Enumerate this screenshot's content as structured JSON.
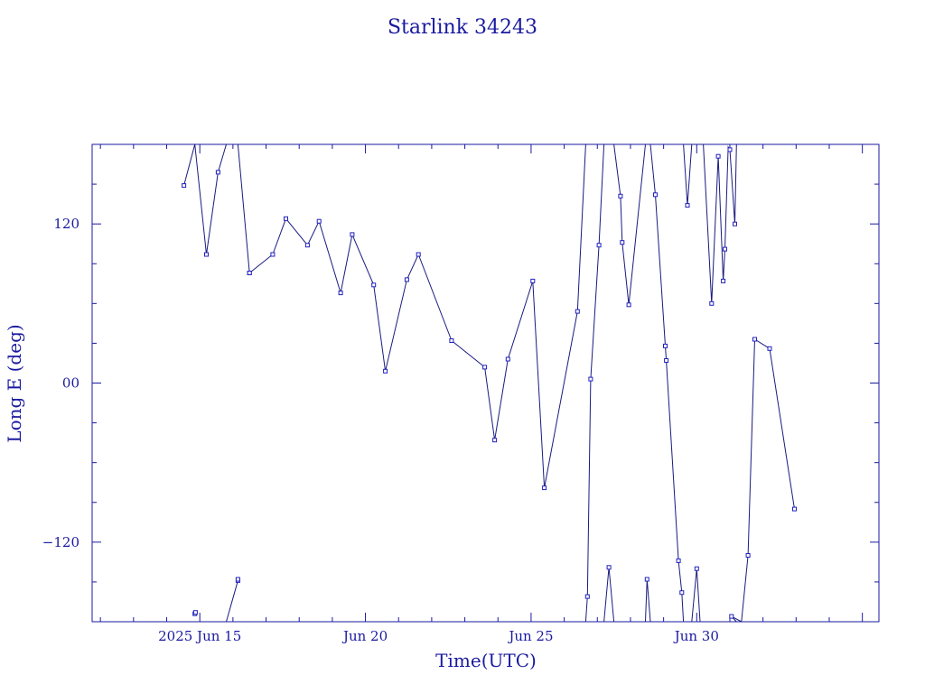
{
  "chart_data": {
    "type": "line",
    "title": "Starlink 34243",
    "xlabel": "Time(UTC)",
    "ylabel": "Long E (deg)",
    "x_unit": "day of June 2025",
    "xlim": [
      11.75,
      35.5
    ],
    "ylim": [
      -180,
      180
    ],
    "x_ticks": [
      {
        "x": 15,
        "label": "2025 Jun 15"
      },
      {
        "x": 20,
        "label": "Jun 20"
      },
      {
        "x": 25,
        "label": "Jun 25"
      },
      {
        "x": 30,
        "label": "Jun 30"
      }
    ],
    "y_ticks": [
      {
        "y": 120,
        "label": "120"
      },
      {
        "y": 0,
        "label": "00"
      },
      {
        "y": -120,
        "label": "−120"
      }
    ],
    "grid": false,
    "segments": [
      [
        [
          14.52,
          149
        ],
        [
          14.85,
          186
        ]
      ],
      [
        [
          14.85,
          -174
        ],
        [
          14.87,
          -173
        ]
      ],
      [
        [
          14.85,
          186
        ],
        [
          15.2,
          97
        ]
      ],
      [
        [
          15.2,
          97
        ],
        [
          15.55,
          159
        ],
        [
          15.8,
          188
        ]
      ],
      [
        [
          15.8,
          -188
        ],
        [
          16.15,
          -149
        ],
        [
          16.15,
          -148
        ]
      ],
      [
        [
          16.15,
          188
        ],
        [
          16.5,
          83
        ]
      ],
      [
        [
          16.5,
          83
        ],
        [
          17.2,
          97
        ],
        [
          17.6,
          124
        ],
        [
          18.25,
          104
        ],
        [
          18.6,
          122
        ],
        [
          19.25,
          68
        ],
        [
          19.6,
          112
        ],
        [
          20.25,
          74
        ],
        [
          20.6,
          9
        ],
        [
          21.25,
          78
        ],
        [
          21.6,
          97
        ],
        [
          22.6,
          32
        ],
        [
          23.6,
          12
        ],
        [
          23.9,
          -43
        ],
        [
          24.3,
          18
        ],
        [
          25.05,
          77
        ],
        [
          25.4,
          -79
        ],
        [
          26.4,
          54
        ],
        [
          26.65,
          180
        ]
      ],
      [
        [
          26.65,
          -180
        ],
        [
          26.7,
          -161
        ],
        [
          26.8,
          3
        ],
        [
          27.05,
          104
        ],
        [
          27.2,
          180
        ]
      ],
      [
        [
          27.2,
          -180
        ],
        [
          27.35,
          -139
        ],
        [
          27.5,
          -180
        ]
      ],
      [
        [
          27.5,
          180
        ],
        [
          27.7,
          141
        ],
        [
          27.75,
          106
        ],
        [
          27.95,
          59
        ],
        [
          28.45,
          180
        ]
      ],
      [
        [
          28.45,
          -180
        ],
        [
          28.5,
          -148
        ],
        [
          28.6,
          -180
        ]
      ],
      [
        [
          28.6,
          180
        ],
        [
          28.75,
          142
        ],
        [
          29.05,
          28
        ],
        [
          29.08,
          17
        ],
        [
          29.45,
          -134
        ],
        [
          29.55,
          -158
        ],
        [
          29.6,
          -180
        ]
      ],
      [
        [
          29.6,
          180
        ],
        [
          29.72,
          134
        ],
        [
          29.85,
          180
        ]
      ],
      [
        [
          29.85,
          -180
        ],
        [
          30.0,
          -140
        ],
        [
          30.1,
          -180
        ]
      ],
      [
        [
          30.1,
          180
        ],
        [
          30.2,
          180
        ],
        [
          30.45,
          60
        ],
        [
          30.65,
          171
        ],
        [
          30.8,
          77
        ],
        [
          30.85,
          101
        ],
        [
          30.95,
          178
        ],
        [
          31.0,
          176
        ],
        [
          31.15,
          120
        ],
        [
          31.2,
          180
        ]
      ],
      [
        [
          31.2,
          -180
        ],
        [
          31.05,
          -176
        ],
        [
          31.35,
          -180
        ]
      ],
      [
        [
          31.35,
          -180
        ],
        [
          31.55,
          -130
        ],
        [
          31.75,
          33
        ],
        [
          32.2,
          26
        ],
        [
          32.95,
          -95
        ]
      ]
    ]
  }
}
